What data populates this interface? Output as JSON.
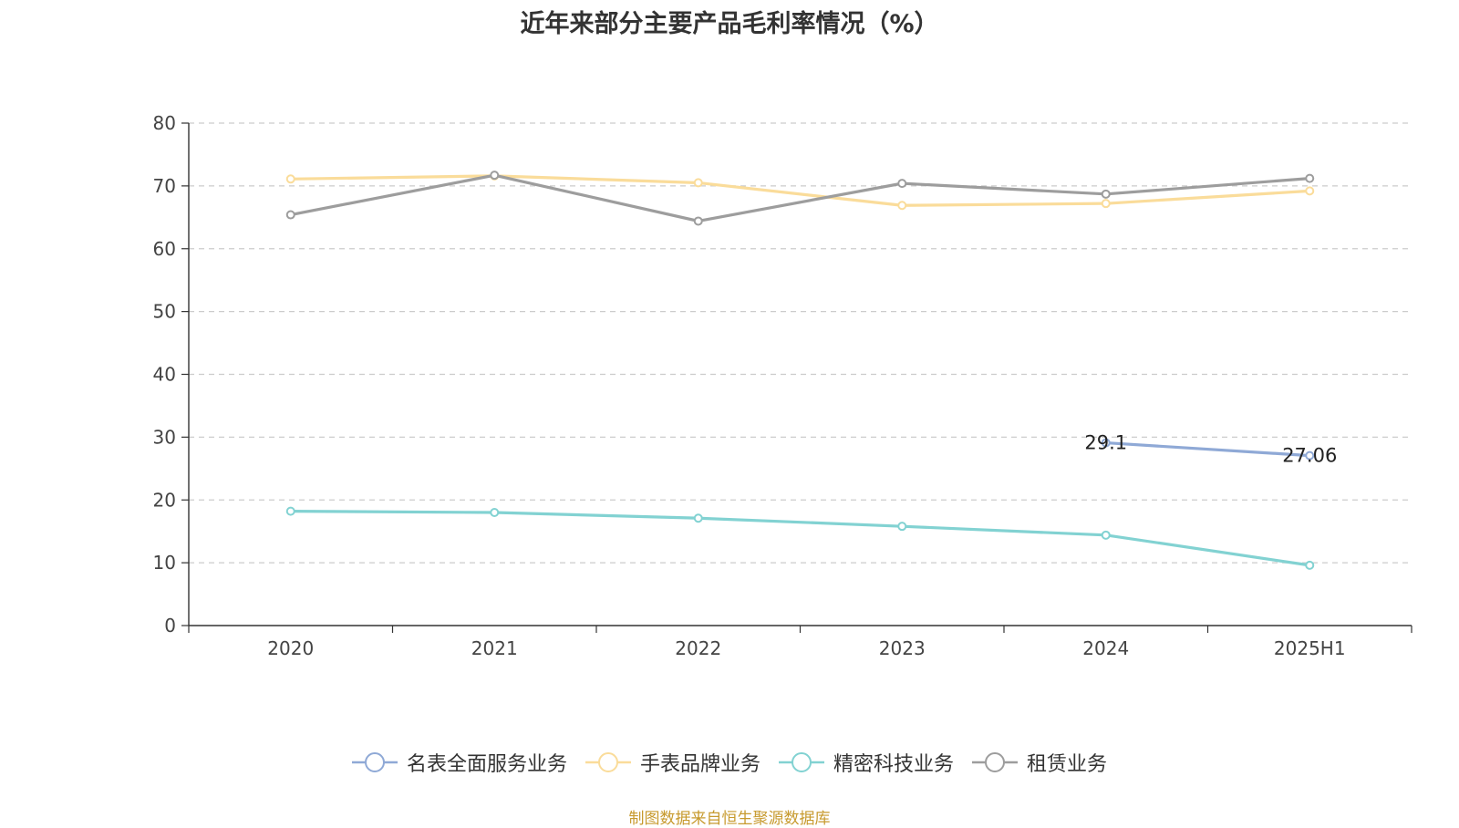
{
  "chart_data": {
    "type": "line",
    "title": "近年来部分主要产品毛利率情况（%）",
    "xlabel": "",
    "ylabel": "",
    "categories": [
      "2020",
      "2021",
      "2022",
      "2023",
      "2024",
      "2025H1"
    ],
    "ylim": [
      0,
      80
    ],
    "yticks": [
      "0",
      "10",
      "20",
      "30",
      "40",
      "50",
      "60",
      "70",
      "80"
    ],
    "grid": "horizontal dashed",
    "legend_position": "bottom-center",
    "series": [
      {
        "name": "名表全面服务业务",
        "color": "#8fa9d6",
        "values": [
          null,
          null,
          null,
          null,
          29.1,
          27.06
        ],
        "data_labels": [
          null,
          null,
          null,
          null,
          "29.1",
          "27.06"
        ]
      },
      {
        "name": "手表品牌业务",
        "color": "#fadc9a",
        "values": [
          71.1,
          71.6,
          70.5,
          66.9,
          67.2,
          69.2
        ],
        "data_labels": [
          null,
          null,
          null,
          null,
          null,
          null
        ]
      },
      {
        "name": "精密科技业务",
        "color": "#82d2d2",
        "values": [
          18.2,
          18.0,
          17.1,
          15.8,
          14.4,
          9.6
        ],
        "data_labels": [
          null,
          null,
          null,
          null,
          null,
          null
        ]
      },
      {
        "name": "租赁业务",
        "color": "#9d9d9d",
        "values": [
          65.4,
          71.7,
          64.4,
          70.4,
          68.7,
          71.2
        ],
        "data_labels": [
          null,
          null,
          null,
          null,
          null,
          null
        ]
      }
    ]
  },
  "source_note": "制图数据来自恒生聚源数据库"
}
